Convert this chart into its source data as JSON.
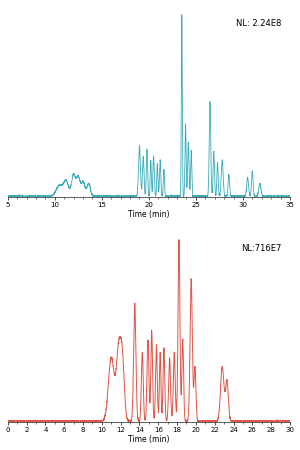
{
  "top_panel": {
    "color": "#3aacb8",
    "annotation": "NL: 2.24E8",
    "xlabel": "Time (min)",
    "xlim": [
      5,
      35
    ],
    "xticks": [
      5,
      10,
      15,
      20,
      25,
      30,
      35
    ],
    "ylim": [
      0,
      1.05
    ]
  },
  "bottom_panel": {
    "color": "#e05548",
    "annotation": "NL:716E7",
    "xlabel": "Time (min)",
    "xlim": [
      0,
      30
    ],
    "xticks": [
      0,
      2,
      4,
      6,
      8,
      10,
      12,
      14,
      16,
      18,
      20,
      22,
      24,
      26,
      28,
      30
    ],
    "ylim": [
      0,
      1.05
    ]
  },
  "bg_color": "#ffffff"
}
